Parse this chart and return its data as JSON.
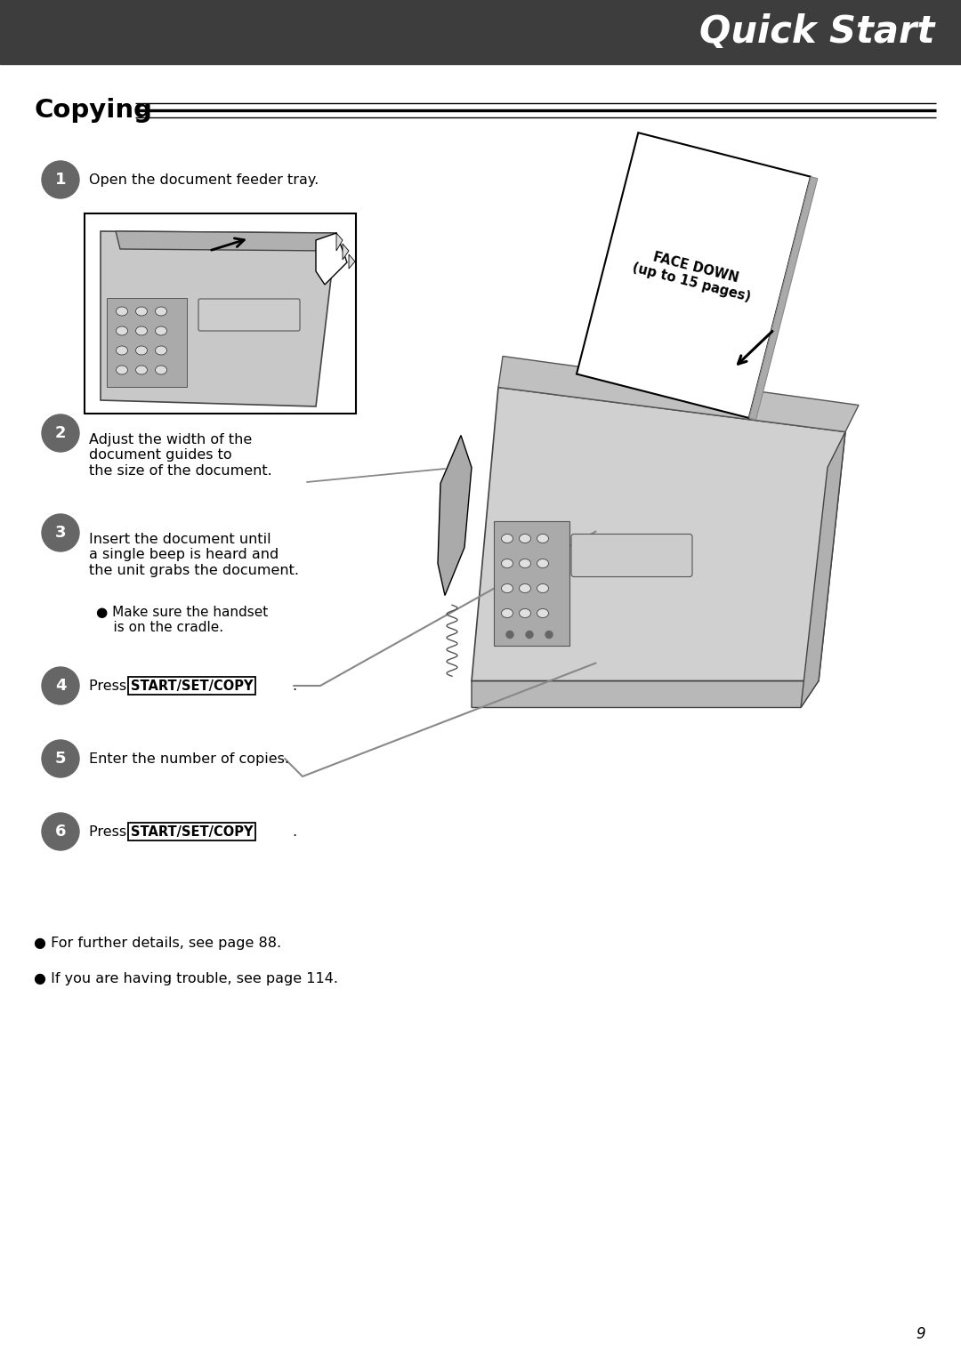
{
  "header_bg_color": "#3d3d3d",
  "header_text": "Quick Start",
  "header_text_color": "#ffffff",
  "page_bg_color": "#ffffff",
  "section_title": "Copying",
  "steps": [
    {
      "num": "1",
      "text": "Open the document feeder tray."
    },
    {
      "num": "2",
      "text": "Adjust the width of the\ndocument guides to\nthe size of the document."
    },
    {
      "num": "3",
      "text": "Insert the document until\na single beep is heard and\nthe unit grabs the document.",
      "bullet": "Make sure the handset\n    is on the cradle."
    },
    {
      "num": "4",
      "text_before": "Press ",
      "button": "START/SET/COPY",
      "text_after": "."
    },
    {
      "num": "5",
      "text": "Enter the number of copies."
    },
    {
      "num": "6",
      "text_before": "Press ",
      "button": "START/SET/COPY",
      "text_after": "."
    }
  ],
  "footer_bullets": [
    "For further details, see page 88.",
    "If you are having trouble, see page 114."
  ],
  "page_number": "9",
  "circle_color": "#666666",
  "circle_r": 0.21,
  "step_fontsize": 11.5,
  "header_fontsize": 30
}
